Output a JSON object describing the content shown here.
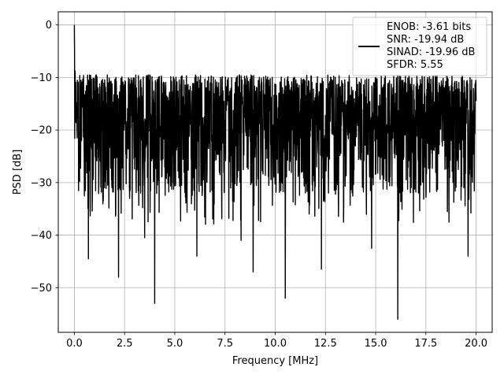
{
  "chart_data": {
    "type": "line",
    "xlabel": "Frequency [MHz]",
    "ylabel": "PSD [dB]",
    "xlim": [
      -0.8,
      20.8
    ],
    "ylim": [
      -58.5,
      2.5
    ],
    "xticks": [
      0.0,
      2.5,
      5.0,
      7.5,
      10.0,
      12.5,
      15.0,
      17.5,
      20.0
    ],
    "xtick_labels": [
      "0.0",
      "2.5",
      "5.0",
      "7.5",
      "10.0",
      "12.5",
      "15.0",
      "17.5",
      "20.0"
    ],
    "yticks": [
      0,
      -10,
      -20,
      -30,
      -40,
      -50
    ],
    "ytick_labels": [
      "0",
      "−10",
      "−20",
      "−30",
      "−40",
      "−50"
    ],
    "grid": true,
    "legend_position": "top-right",
    "series": [
      {
        "name": "ENOB: -3.61 bits",
        "color": "#000000",
        "x_range": [
          0.0,
          20.0
        ],
        "noise_floor_db": -20,
        "noise_band_db": [
          -27,
          -13
        ],
        "peak_max_db": -9.5,
        "dc_peak_db": 0,
        "notable_dips": [
          {
            "x": 0.7,
            "y": -44.5
          },
          {
            "x": 2.2,
            "y": -48.0
          },
          {
            "x": 3.5,
            "y": -40.5
          },
          {
            "x": 4.0,
            "y": -53.0
          },
          {
            "x": 6.1,
            "y": -44.0
          },
          {
            "x": 8.3,
            "y": -41.0
          },
          {
            "x": 8.9,
            "y": -47.0
          },
          {
            "x": 10.5,
            "y": -52.0
          },
          {
            "x": 12.3,
            "y": -46.5
          },
          {
            "x": 14.8,
            "y": -42.5
          },
          {
            "x": 16.1,
            "y": -56.0
          },
          {
            "x": 19.6,
            "y": -44.0
          }
        ]
      }
    ],
    "legend_entries": [
      "ENOB: -3.61 bits",
      "SNR: -19.94 dB",
      "SINAD: -19.96 dB",
      "SFDR: 5.55"
    ]
  }
}
